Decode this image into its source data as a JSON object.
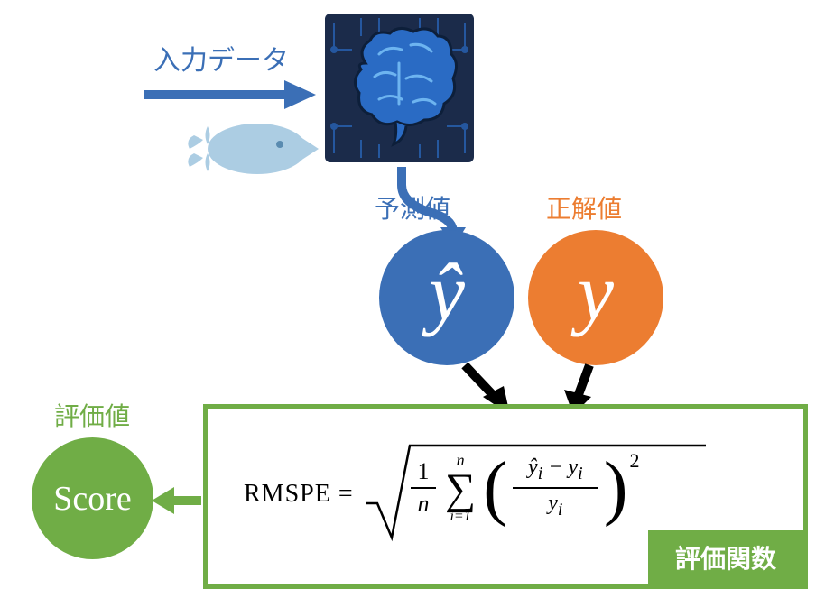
{
  "labels": {
    "input": "入力データ",
    "predicted": "予測値",
    "actual": "正解値",
    "eval_value": "評価値",
    "eval_function": "評価関数"
  },
  "circles": {
    "yhat": {
      "symbol": "ŷ",
      "color": "#3b6fb6",
      "label_color": "#3b6fb6"
    },
    "y": {
      "symbol": "y",
      "color": "#ec7d31",
      "label_color": "#ec7d31"
    },
    "score": {
      "symbol": "Score",
      "color": "#70ad46",
      "label_color": "#70ad46"
    }
  },
  "formula": {
    "lhs": "RMSPE =",
    "n": "n",
    "one": "1",
    "sigma": "∑",
    "sigma_top": "n",
    "sigma_bottom": "i=1",
    "frac_top": "ŷ<sub>i</sub> − y<sub>i</sub>",
    "frac_bottom": "y<sub>i</sub>",
    "power": "2"
  },
  "colors": {
    "blue": "#3b6fb6",
    "lightblue": "#6fa8dc",
    "paleblue": "#a4c8e1",
    "orange": "#ec7d31",
    "green": "#70ad46",
    "darknavy": "#1b2b4a",
    "midblue": "#2a6bc4",
    "black": "#000000",
    "white": "#ffffff"
  },
  "brain_box": {
    "bg": "#1b2b4a",
    "brain_color": "#2a6bc4",
    "brain_highlight": "#6db4f0"
  }
}
